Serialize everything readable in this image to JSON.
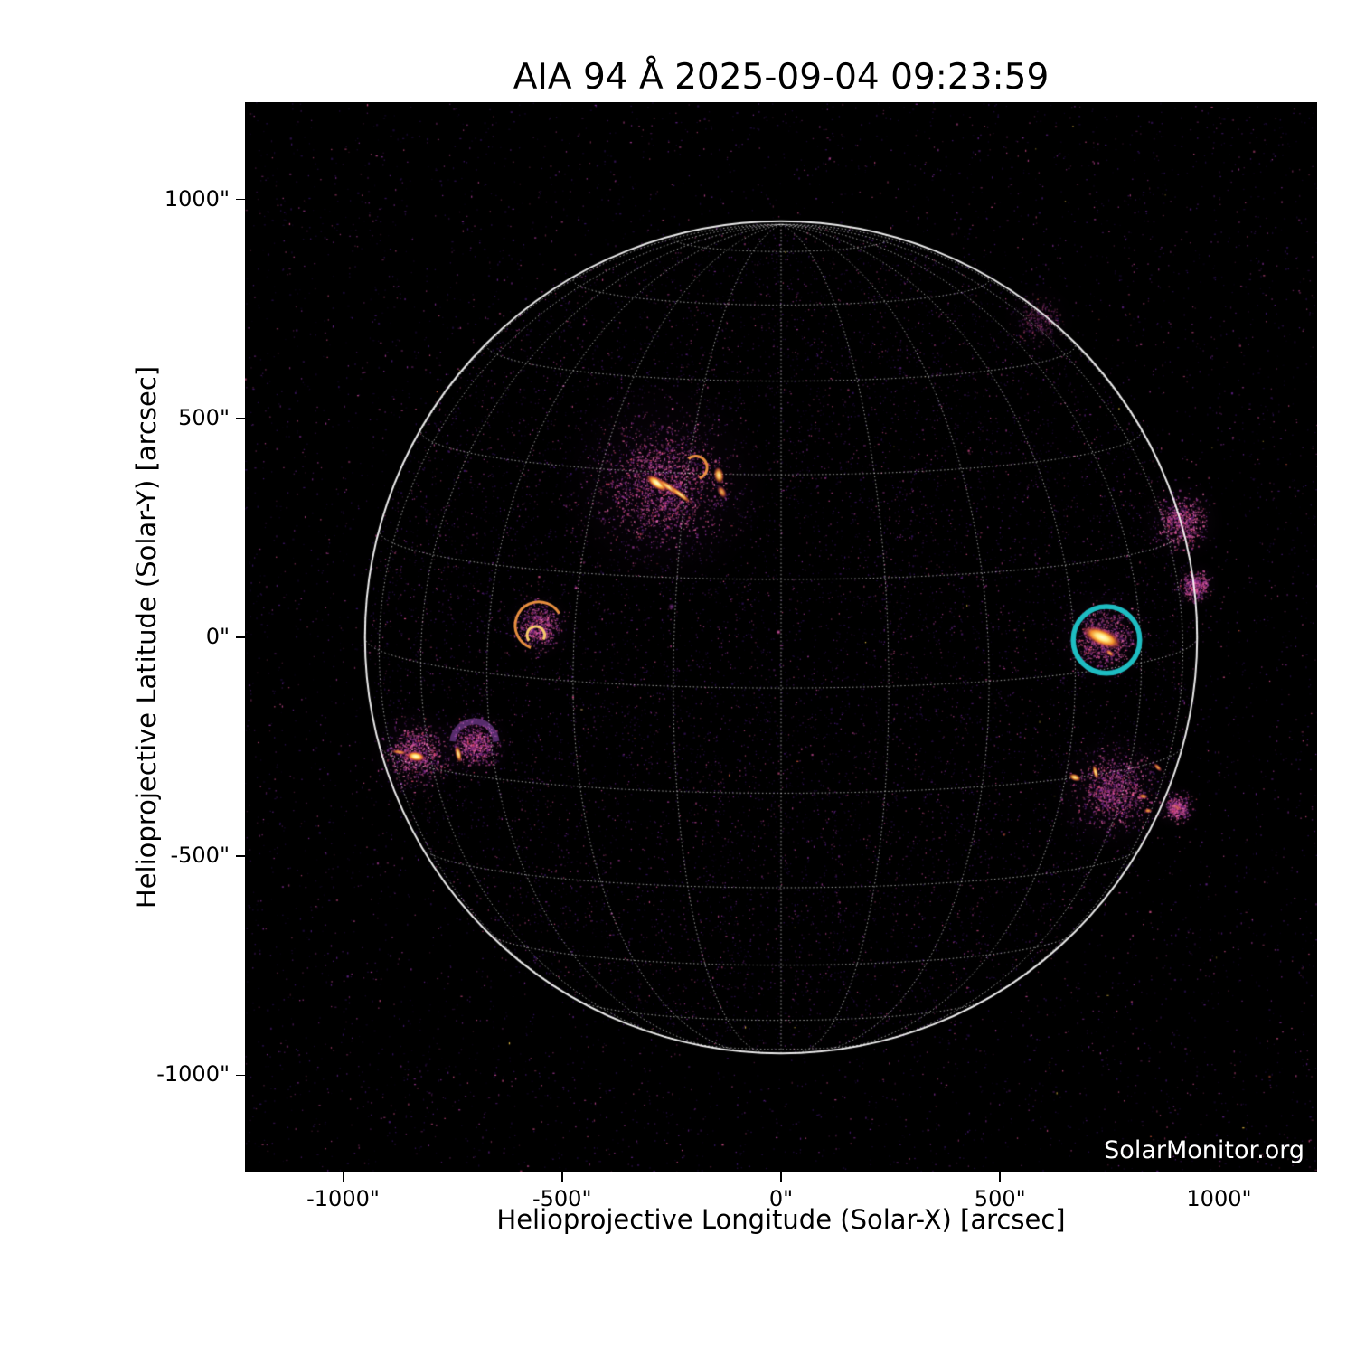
{
  "title": "AIA 94 Å 2025-09-04 09:23:59",
  "watermark": "SolarMonitor.org",
  "axes": {
    "x": {
      "label": "Helioprojective Longitude (Solar-X) [arcsec]",
      "ticks": [
        {
          "v": -1000,
          "t": "-1000\""
        },
        {
          "v": -500,
          "t": "-500\""
        },
        {
          "v": 0,
          "t": "0\""
        },
        {
          "v": 500,
          "t": "500\""
        },
        {
          "v": 1000,
          "t": "1000\""
        }
      ]
    },
    "y": {
      "label": "Helioprojective Latitude (Solar-Y) [arcsec]",
      "ticks": [
        {
          "v": 1000,
          "t": "1000\""
        },
        {
          "v": 500,
          "t": "500\""
        },
        {
          "v": 0,
          "t": "0\""
        },
        {
          "v": -500,
          "t": "-500\""
        },
        {
          "v": -1000,
          "t": "-1000\""
        }
      ]
    }
  },
  "chart_data": {
    "type": "heatmap",
    "subtype": "solar_euv_full_disk_image",
    "instrument": "AIA",
    "wavelength": "94 Å",
    "timestamp": "2025-09-04 09:23:59",
    "title": "AIA 94 Å 2025-09-04 09:23:59",
    "xlabel": "Helioprojective Longitude (Solar-X) [arcsec]",
    "ylabel": "Helioprojective Latitude (Solar-Y) [arcsec]",
    "xlim": [
      -1224,
      1224
    ],
    "ylim": [
      -1222,
      1222
    ],
    "xticks": [
      -1000,
      -500,
      0,
      500,
      1000
    ],
    "yticks": [
      -1000,
      -500,
      0,
      500,
      1000
    ],
    "background": "#000000",
    "solar_radius_arcsec": 950,
    "grid": {
      "spacing_deg": 15,
      "b0_deg": 7,
      "style": "dotted",
      "color": "rgba(255,255,255,0.62)"
    },
    "limb_color": "rgba(255,255,255,0.92)",
    "annotation_circle": {
      "x": 743,
      "y": -6,
      "r": 76,
      "color": "#1ebdc2",
      "line_width": 5.5,
      "meaning": "flagged active region"
    },
    "active_region_streaks": [
      {
        "x": -283,
        "y": 352,
        "len": 62,
        "w": 26,
        "angle": 35,
        "tone": "core"
      },
      {
        "x": -255,
        "y": 342,
        "len": 72,
        "w": 16,
        "angle": 35,
        "tone": "bright"
      },
      {
        "x": -230,
        "y": 326,
        "len": 62,
        "w": 14,
        "angle": 38,
        "tone": "bright"
      },
      {
        "x": -142,
        "y": 370,
        "len": 40,
        "w": 24,
        "angle": 80,
        "tone": "bright"
      },
      {
        "x": -135,
        "y": 332,
        "len": 34,
        "w": 20,
        "angle": 60,
        "tone": "orange"
      },
      {
        "x": 733,
        "y": 0,
        "len": 100,
        "w": 42,
        "angle": 23,
        "tone": "core"
      },
      {
        "x": 751,
        "y": -36,
        "len": 26,
        "w": 13,
        "angle": 40,
        "tone": "orange"
      },
      {
        "x": -834,
        "y": -272,
        "len": 46,
        "w": 24,
        "angle": 10,
        "tone": "core"
      },
      {
        "x": -872,
        "y": -262,
        "len": 40,
        "w": 12,
        "angle": 8,
        "tone": "orange"
      },
      {
        "x": -737,
        "y": -266,
        "len": 42,
        "w": 15,
        "angle": 78,
        "tone": "bright"
      },
      {
        "x": 718,
        "y": -308,
        "len": 36,
        "w": 12,
        "angle": 75,
        "tone": "bright"
      },
      {
        "x": 671,
        "y": -320,
        "len": 30,
        "w": 17,
        "angle": 20,
        "tone": "bright"
      },
      {
        "x": 860,
        "y": -297,
        "len": 26,
        "w": 12,
        "angle": 45,
        "tone": "orange"
      },
      {
        "x": 827,
        "y": -363,
        "len": 24,
        "w": 13,
        "angle": 10,
        "tone": "orange"
      },
      {
        "x": 838,
        "y": -396,
        "len": 20,
        "w": 12,
        "angle": 0,
        "tone": "orange"
      },
      {
        "x": 904,
        "y": -388,
        "len": 26,
        "w": 14,
        "angle": 30,
        "tone": "faint"
      }
    ],
    "loop_rings": [
      {
        "x": -553,
        "y": 27,
        "r": 54,
        "start": 110,
        "end": 330,
        "tone": "orange",
        "lw": 3
      },
      {
        "x": -560,
        "y": 5,
        "r": 20,
        "start": 140,
        "end": 390,
        "tone": "bright",
        "lw": 3
      },
      {
        "x": -700,
        "y": -242,
        "r": 50,
        "start": 185,
        "end": 355,
        "tone": "purple",
        "lw": 7
      },
      {
        "x": -195,
        "y": 388,
        "r": 26,
        "start": 230,
        "end": 430,
        "tone": "orange",
        "lw": 3
      }
    ],
    "point_features": [
      {
        "x": -6,
        "y": 12,
        "r": 6,
        "tone": "pink"
      },
      {
        "x": -468,
        "y": 113,
        "r": 5,
        "tone": "pink"
      },
      {
        "x": -250,
        "y": 70,
        "r": 8,
        "tone": "purple"
      }
    ],
    "speckle_glows": [
      {
        "x": -270,
        "y": 350,
        "r": 250
      },
      {
        "x": 735,
        "y": 0,
        "r": 120
      },
      {
        "x": -835,
        "y": -265,
        "r": 115
      },
      {
        "x": -700,
        "y": -245,
        "r": 90
      },
      {
        "x": -553,
        "y": 27,
        "r": 85
      },
      {
        "x": 760,
        "y": -350,
        "r": 150
      },
      {
        "x": 915,
        "y": 265,
        "r": 100
      },
      {
        "x": 945,
        "y": 120,
        "r": 60
      },
      {
        "x": 588,
        "y": 728,
        "r": 90,
        "faint": true
      },
      {
        "x": 904,
        "y": -388,
        "r": 55
      }
    ],
    "palette": {
      "speckle_base": [
        "#1d0b3a",
        "#2c1157",
        "#3c1670",
        "#521d86",
        "#6b2596",
        "#8a2f9f",
        "#aa3c9b",
        "#c44894",
        "#dd5290"
      ],
      "speckle_glow": [
        "#7c2a90",
        "#a03a9c",
        "#c04898",
        "#da549b",
        "#ef63a8",
        "#ff77b8",
        "#e8486f"
      ],
      "rare_dots": [
        "#ff6b4a",
        "#ffd34e"
      ],
      "ring_colors": {
        "orange": "rgba(255,157,69,0.9)",
        "bright": "rgba(255,211,110,0.95)",
        "purple": "rgba(168,88,210,0.5)"
      },
      "tones": {
        "core": [
          [
            0,
            "rgba(255,252,214,1)"
          ],
          [
            0.3,
            "rgba(255,233,130,1)"
          ],
          [
            0.55,
            "rgba(252,150,42,0.95)"
          ],
          [
            0.78,
            "rgba(196,66,70,0.55)"
          ],
          [
            1,
            "rgba(120,30,90,0)"
          ]
        ],
        "bright": [
          [
            0,
            "rgba(255,242,178,0.98)"
          ],
          [
            0.4,
            "rgba(255,184,72,0.92)"
          ],
          [
            0.7,
            "rgba(226,98,44,0.6)"
          ],
          [
            1,
            "rgba(150,40,100,0)"
          ]
        ],
        "orange": [
          [
            0,
            "rgba(255,198,100,0.92)"
          ],
          [
            0.45,
            "rgba(242,124,48,0.8)"
          ],
          [
            0.75,
            "rgba(180,55,90,0.4)"
          ],
          [
            1,
            "rgba(120,30,90,0)"
          ]
        ],
        "faint": [
          [
            0,
            "rgba(250,150,80,0.55)"
          ],
          [
            0.5,
            "rgba(220,90,70,0.4)"
          ],
          [
            1,
            "rgba(120,30,90,0)"
          ]
        ],
        "pink": [
          [
            0,
            "rgba(255,130,205,0.9)"
          ],
          [
            0.5,
            "rgba(215,70,160,0.5)"
          ],
          [
            1,
            "rgba(120,30,90,0)"
          ]
        ],
        "purple": [
          [
            0,
            "rgba(205,95,225,0.65)"
          ],
          [
            0.5,
            "rgba(150,55,170,0.4)"
          ],
          [
            1,
            "rgba(100,30,120,0)"
          ]
        ]
      }
    }
  }
}
